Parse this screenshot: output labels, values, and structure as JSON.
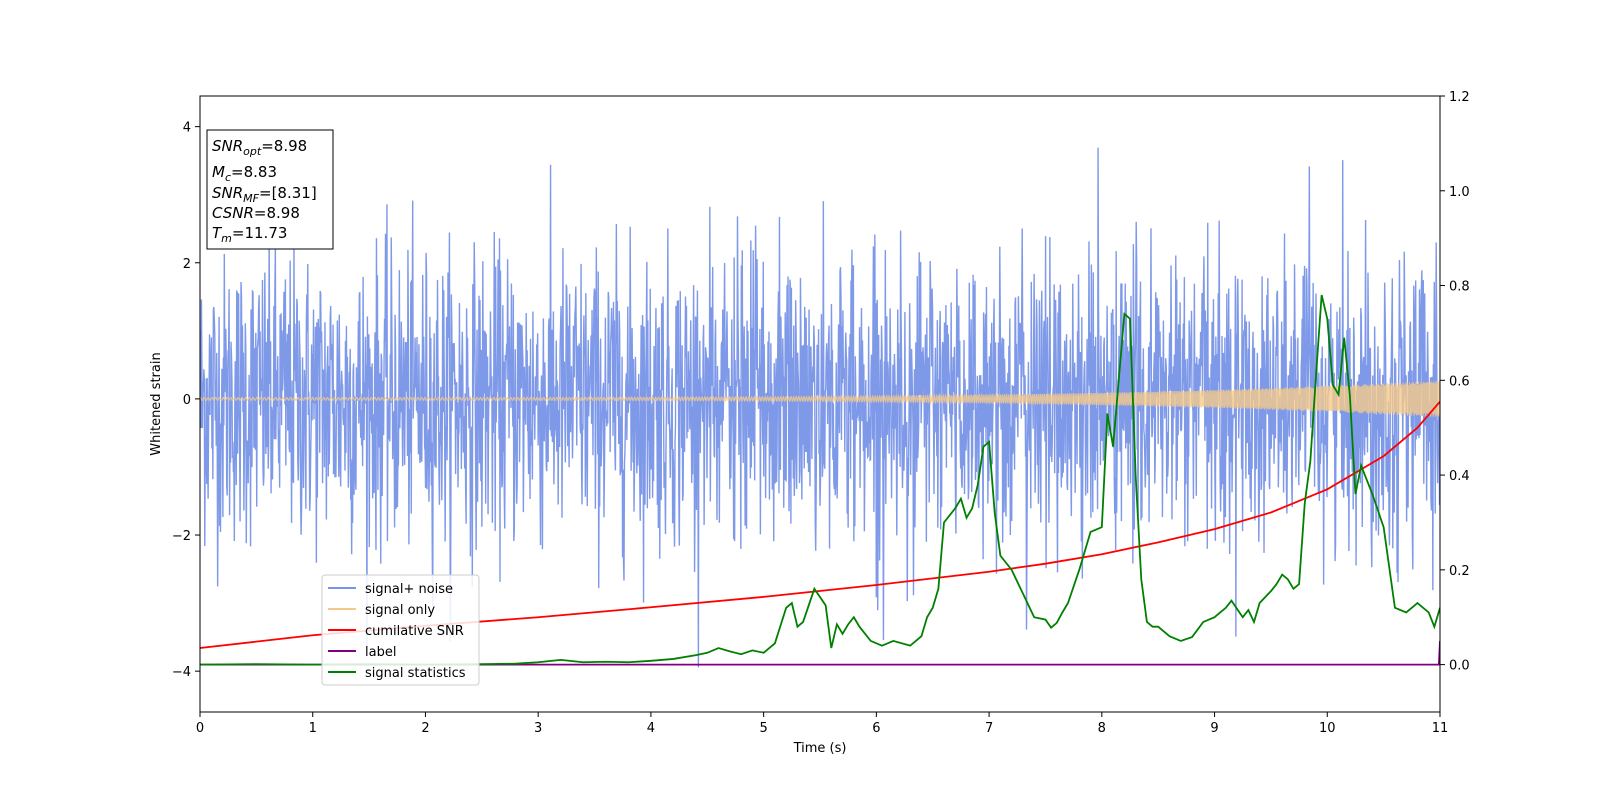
{
  "chart_data": {
    "type": "line",
    "xlabel": "Time (s)",
    "ylabel": "Whitened strain",
    "xlim": [
      0,
      11
    ],
    "ylim_left": [
      -4.6,
      4.45
    ],
    "ylim_right": [
      -0.1,
      1.2
    ],
    "xticks": [
      "0",
      "1",
      "2",
      "3",
      "4",
      "5",
      "6",
      "7",
      "8",
      "9",
      "10",
      "11"
    ],
    "yticks_left": [
      "4",
      "2",
      "0",
      "−2",
      "−4"
    ],
    "yticks_right": [
      "1.2",
      "1.0",
      "0.8",
      "0.6",
      "0.4",
      "0.2",
      "0.0"
    ],
    "grid": false,
    "legend_location": "lower-left",
    "info_box": {
      "lines": [
        {
          "main": "SNR",
          "sub": "opt",
          "value": "=8.98"
        },
        {
          "main": "M",
          "sub": "c",
          "value": "=8.83"
        },
        {
          "main": "SNR",
          "sub": "MF",
          "value": "=[8.31]"
        },
        {
          "main": "CSNR",
          "sub": "",
          "value": "=8.98"
        },
        {
          "main": "T",
          "sub": "m",
          "value": "=11.73"
        }
      ]
    },
    "series": [
      {
        "name": "signal+ noise",
        "color": "#7894e8",
        "axis": "left",
        "description_kind": "noise",
        "std": 1.0,
        "min_observed": -4.15,
        "max_observed": 4.02
      },
      {
        "name": "signal only",
        "color": "#f5c98a",
        "axis": "left",
        "amplitude_start": 0.02,
        "amplitude_end": 0.27,
        "description_kind": "chirp"
      },
      {
        "name": "cumilative SNR",
        "color": "#ff0000",
        "axis": "right",
        "x": [
          0,
          1,
          2,
          3,
          4,
          5,
          6,
          7,
          7.5,
          8,
          8.5,
          9,
          9.5,
          10,
          10.5,
          10.8,
          11
        ],
        "y": [
          0.035,
          0.062,
          0.082,
          0.1,
          0.121,
          0.143,
          0.168,
          0.196,
          0.213,
          0.233,
          0.258,
          0.286,
          0.321,
          0.37,
          0.44,
          0.5,
          0.555
        ]
      },
      {
        "name": "label",
        "color": "#800080",
        "axis": "right",
        "x": [
          0,
          10.99,
          11
        ],
        "y": [
          0.0,
          0.0,
          0.05
        ]
      },
      {
        "name": "signal statistics",
        "color": "#008000",
        "axis": "right",
        "x": [
          0,
          0.5,
          1.0,
          1.5,
          2.0,
          2.5,
          2.8,
          3.0,
          3.2,
          3.4,
          3.6,
          3.8,
          4.0,
          4.2,
          4.4,
          4.5,
          4.6,
          4.7,
          4.8,
          4.9,
          5.0,
          5.1,
          5.2,
          5.25,
          5.3,
          5.35,
          5.45,
          5.55,
          5.6,
          5.65,
          5.7,
          5.75,
          5.8,
          5.85,
          5.95,
          6.05,
          6.15,
          6.3,
          6.4,
          6.45,
          6.5,
          6.55,
          6.6,
          6.7,
          6.75,
          6.8,
          6.85,
          6.9,
          6.95,
          7.0,
          7.05,
          7.1,
          7.2,
          7.3,
          7.4,
          7.5,
          7.55,
          7.6,
          7.65,
          7.7,
          7.8,
          7.9,
          8.0,
          8.05,
          8.1,
          8.15,
          8.2,
          8.25,
          8.3,
          8.35,
          8.4,
          8.45,
          8.5,
          8.6,
          8.7,
          8.8,
          8.9,
          9.0,
          9.05,
          9.1,
          9.15,
          9.25,
          9.3,
          9.35,
          9.4,
          9.5,
          9.55,
          9.6,
          9.65,
          9.7,
          9.75,
          9.8,
          9.85,
          9.9,
          9.95,
          10.0,
          10.05,
          10.1,
          10.15,
          10.2,
          10.25,
          10.3,
          10.4,
          10.5,
          10.6,
          10.7,
          10.8,
          10.9,
          10.95,
          11.0
        ],
        "y": [
          0.0,
          0.001,
          0.0,
          0.001,
          0.0,
          0.001,
          0.002,
          0.005,
          0.01,
          0.005,
          0.006,
          0.005,
          0.008,
          0.012,
          0.02,
          0.025,
          0.035,
          0.028,
          0.022,
          0.03,
          0.025,
          0.045,
          0.12,
          0.13,
          0.08,
          0.09,
          0.16,
          0.125,
          0.035,
          0.085,
          0.065,
          0.085,
          0.1,
          0.08,
          0.05,
          0.04,
          0.05,
          0.04,
          0.06,
          0.1,
          0.12,
          0.16,
          0.3,
          0.33,
          0.35,
          0.31,
          0.33,
          0.38,
          0.46,
          0.47,
          0.32,
          0.23,
          0.2,
          0.15,
          0.1,
          0.095,
          0.078,
          0.088,
          0.11,
          0.13,
          0.2,
          0.28,
          0.29,
          0.53,
          0.46,
          0.6,
          0.74,
          0.73,
          0.4,
          0.18,
          0.09,
          0.08,
          0.08,
          0.06,
          0.05,
          0.058,
          0.09,
          0.1,
          0.11,
          0.12,
          0.135,
          0.1,
          0.115,
          0.09,
          0.13,
          0.155,
          0.17,
          0.19,
          0.18,
          0.16,
          0.17,
          0.34,
          0.43,
          0.61,
          0.78,
          0.73,
          0.59,
          0.57,
          0.69,
          0.57,
          0.36,
          0.42,
          0.36,
          0.29,
          0.12,
          0.11,
          0.13,
          0.11,
          0.08,
          0.12
        ]
      }
    ]
  }
}
